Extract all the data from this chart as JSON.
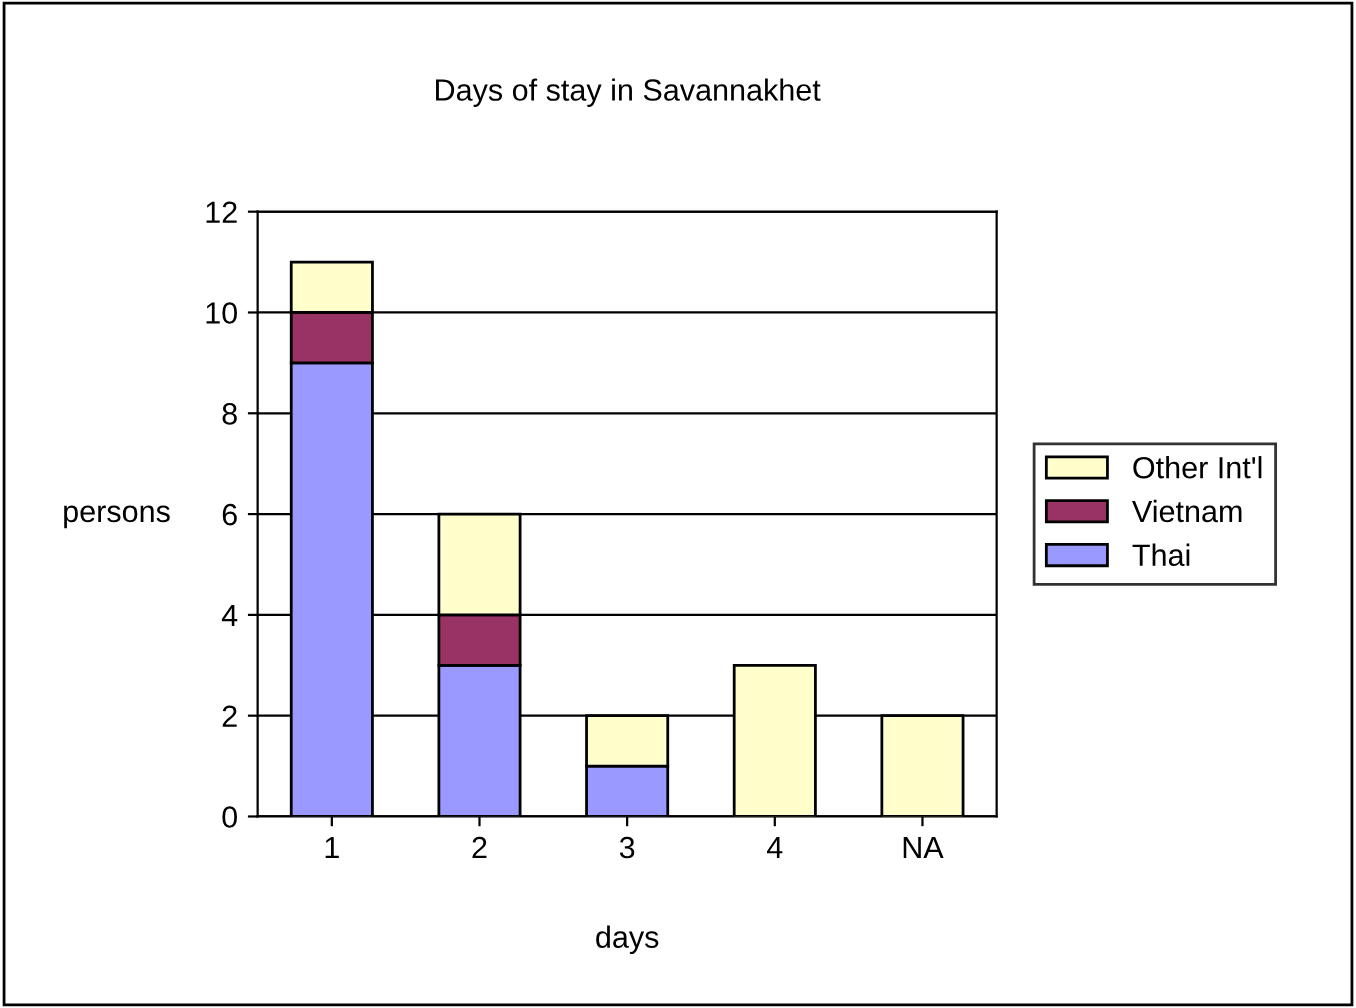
{
  "chart_data": {
    "type": "bar",
    "title": "Days of stay in Savannakhet",
    "xlabel": "days",
    "ylabel": "persons",
    "categories": [
      "1",
      "2",
      "3",
      "4",
      "NA"
    ],
    "stacked": true,
    "series": [
      {
        "name": "Thai",
        "color": "#9999ff",
        "values": [
          9,
          3,
          1,
          0,
          0
        ]
      },
      {
        "name": "Vietnam",
        "color": "#993366",
        "values": [
          1,
          1,
          0,
          0,
          0
        ]
      },
      {
        "name": "Other Int'l",
        "color": "#ffffcc",
        "values": [
          1,
          2,
          1,
          3,
          2
        ]
      }
    ],
    "ylim": [
      0,
      12
    ],
    "yticks": [
      0,
      2,
      4,
      6,
      8,
      10,
      12
    ],
    "grid": "y",
    "legend": "right"
  }
}
